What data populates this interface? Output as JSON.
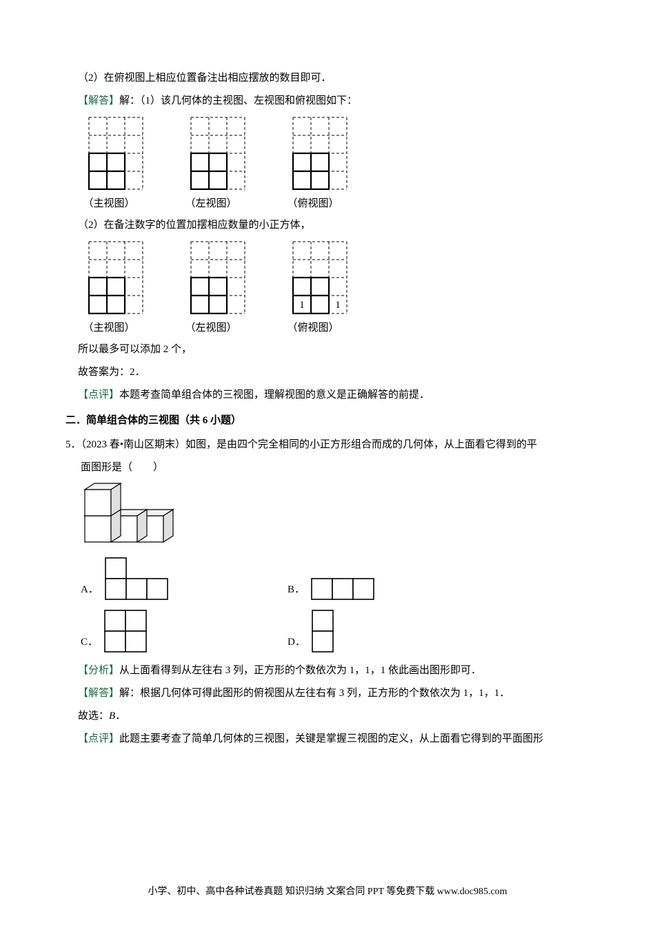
{
  "colors": {
    "page_bg": "#ffffff",
    "text": "#000000",
    "tag_green": "#1a6840",
    "grid_dash": "#000000",
    "grid_solid": "#000000"
  },
  "lines": {
    "l1": "（2）在俯视图上相应位置备注出相应摆放的数目即可．",
    "l2_tag": "【解答】",
    "l2_rest": "解：（1）该几何体的主视图、左视图和俯视图如下：",
    "l3": "（2）在备注数字的位置加摆相应数量的小正方体，",
    "l4": "所以最多可以添加 2 个，",
    "l5": "故答案为：2．",
    "l6_tag": "【点评】",
    "l6_rest": "本题考查简单组合体的三视图，理解视图的意义是正确解答的前提．",
    "section": "二．简单组合体的三视图（共 6 小题）",
    "q5": "5．（2023 春•南山区期末）如图，是由四个完全相同的小正方形组合而成的几何体，从上面看它得到的平",
    "q5b": "面图形是（　　）",
    "analysis_tag": "【分析】",
    "analysis_rest": "从上面看得到从左往右 3 列，正方形的个数依次为 1，1，1 依此画出图形即可．",
    "solve_tag": "【解答】",
    "solve_rest": "解：根据几何体可得此图形的俯视图从左往右有 3 列，正方形的个数依次为 1，1，1．",
    "choice": "故选：",
    "choice_ans": "B",
    "choice_end": "．",
    "comment_tag": "【点评】",
    "comment_rest": "此题主要考查了简单几何体的三视图，关键是掌握三视图的定义，从上面看它得到的平面图形",
    "footer": "小学、初中、高中各种试卷真题  知识归纳  文案合同  PPT 等免费下载    www.doc985.com"
  },
  "labels": {
    "front": "（主视图）",
    "left": "（左视图）",
    "top": "（俯视图）",
    "A": "A．",
    "B": "B．",
    "C": "C．",
    "D": "D．"
  },
  "grids": {
    "cell": 26,
    "rows": 4,
    "cols": 3,
    "set1": {
      "front_solid": [
        [
          2,
          0
        ],
        [
          2,
          1
        ],
        [
          3,
          0
        ],
        [
          3,
          1
        ]
      ],
      "left_solid": [
        [
          2,
          0
        ],
        [
          2,
          1
        ],
        [
          3,
          0
        ],
        [
          3,
          1
        ]
      ],
      "top_solid": [
        [
          2,
          0
        ],
        [
          2,
          1
        ],
        [
          3,
          0
        ],
        [
          3,
          1
        ]
      ]
    },
    "set2": {
      "front_solid": [
        [
          2,
          0
        ],
        [
          2,
          1
        ],
        [
          3,
          0
        ],
        [
          3,
          1
        ]
      ],
      "left_solid": [
        [
          2,
          0
        ],
        [
          2,
          1
        ],
        [
          3,
          0
        ],
        [
          3,
          1
        ]
      ],
      "top_solid": [
        [
          2,
          0
        ],
        [
          2,
          1
        ],
        [
          3,
          0
        ],
        [
          3,
          1
        ]
      ],
      "top_numbers": [
        {
          "r": 3,
          "c": 0,
          "v": "1"
        },
        {
          "r": 3,
          "c": 2,
          "v": "1"
        }
      ]
    }
  },
  "cube3d": {
    "size": 38,
    "colors": {
      "top": "#f2f2f2",
      "side": "#e0e0e0",
      "front": "#ffffff",
      "stroke": "#000000"
    }
  },
  "options": {
    "A": {
      "cols": 3,
      "rows": 2,
      "cells": [
        [
          0,
          0
        ],
        [
          1,
          0
        ],
        [
          1,
          1
        ],
        [
          1,
          2
        ]
      ]
    },
    "B": {
      "cols": 3,
      "rows": 1,
      "cells": [
        [
          0,
          0
        ],
        [
          0,
          1
        ],
        [
          0,
          2
        ]
      ]
    },
    "C": {
      "cols": 2,
      "rows": 2,
      "cells": [
        [
          0,
          0
        ],
        [
          0,
          1
        ],
        [
          1,
          0
        ],
        [
          1,
          1
        ]
      ]
    },
    "D": {
      "cols": 1,
      "rows": 2,
      "cells": [
        [
          0,
          0
        ],
        [
          1,
          0
        ]
      ]
    },
    "cell": 30
  }
}
